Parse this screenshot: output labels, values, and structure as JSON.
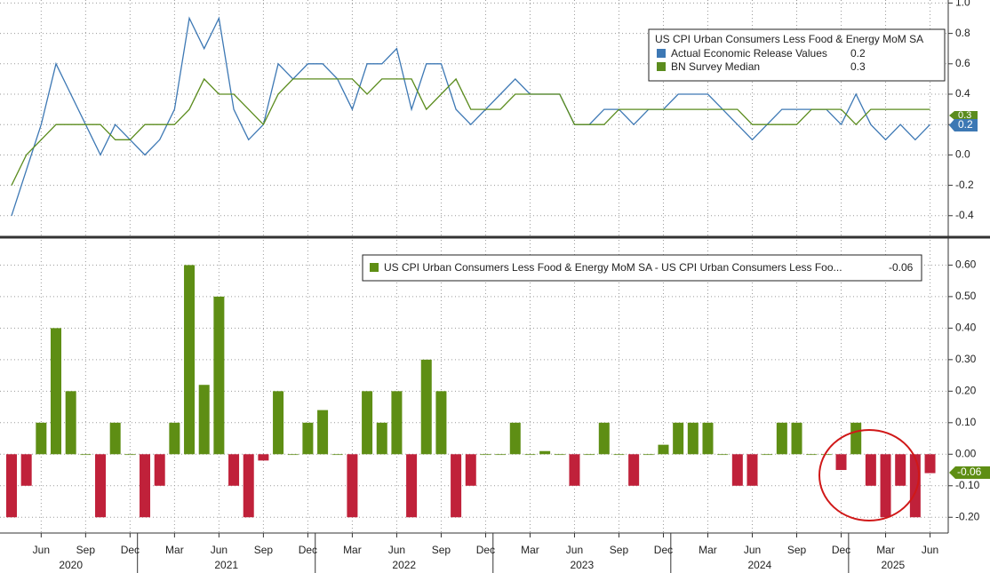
{
  "chart_data": [
    {
      "type": "line",
      "legend_title": "US CPI Urban Consumers Less Food & Energy MoM SA",
      "series": [
        {
          "name": "Actual Economic Release Values",
          "color": "#3d78b4",
          "values": [
            -0.4,
            -0.1,
            0.2,
            0.6,
            0.4,
            0.2,
            0.0,
            0.2,
            0.1,
            0.0,
            0.1,
            0.3,
            0.9,
            0.7,
            0.9,
            0.3,
            0.1,
            0.2,
            0.6,
            0.5,
            0.6,
            0.6,
            0.5,
            0.3,
            0.6,
            0.6,
            0.7,
            0.3,
            0.6,
            0.6,
            0.3,
            0.2,
            0.3,
            0.4,
            0.5,
            0.4,
            0.4,
            0.4,
            0.2,
            0.2,
            0.3,
            0.3,
            0.2,
            0.3,
            0.3,
            0.4,
            0.4,
            0.4,
            0.3,
            0.2,
            0.1,
            0.2,
            0.3,
            0.3,
            0.3,
            0.3,
            0.2,
            0.4,
            0.2,
            0.1,
            0.2,
            0.1,
            0.2
          ]
        },
        {
          "name": "BN Survey Median",
          "color": "#5b8c1e",
          "values": [
            -0.2,
            0.0,
            0.1,
            0.2,
            0.2,
            0.2,
            0.2,
            0.1,
            0.1,
            0.2,
            0.2,
            0.2,
            0.3,
            0.5,
            0.4,
            0.4,
            0.3,
            0.2,
            0.4,
            0.5,
            0.5,
            0.5,
            0.5,
            0.5,
            0.4,
            0.5,
            0.5,
            0.5,
            0.3,
            0.4,
            0.5,
            0.3,
            0.3,
            0.3,
            0.4,
            0.4,
            0.4,
            0.4,
            0.2,
            0.2,
            0.2,
            0.3,
            0.3,
            0.3,
            0.3,
            0.3,
            0.3,
            0.3,
            0.3,
            0.3,
            0.2,
            0.2,
            0.2,
            0.2,
            0.3,
            0.3,
            0.3,
            0.2,
            0.3,
            0.3,
            0.3,
            0.3,
            0.3
          ]
        }
      ],
      "ylim": [
        -0.53,
        1.02
      ],
      "yticks": [
        -0.4,
        -0.2,
        {
          "value": 0,
          "label": "0.0"
        },
        0.2,
        0.4,
        0.6,
        0.8,
        {
          "value": 1,
          "label": "1.0"
        }
      ],
      "grid": true
    },
    {
      "type": "bar",
      "categories": [
        null,
        null,
        "Jun",
        null,
        null,
        "Sep",
        null,
        null,
        "Dec",
        null,
        null,
        "Mar",
        null,
        null,
        "Jun",
        null,
        null,
        "Sep",
        null,
        null,
        "Dec",
        null,
        null,
        "Mar",
        null,
        null,
        "Jun",
        null,
        null,
        "Sep",
        null,
        null,
        "Dec",
        null,
        null,
        "Mar",
        null,
        null,
        "Jun",
        null,
        null,
        "Sep",
        null,
        null,
        "Dec",
        null,
        null,
        "Mar",
        null,
        null,
        "Jun",
        null,
        null,
        "Sep",
        null,
        null,
        "Dec",
        null,
        null,
        "Mar",
        null,
        null,
        "Jun"
      ],
      "years": [
        "2020",
        "2021",
        "2022",
        "2023",
        "2024",
        "2025"
      ],
      "series": [
        {
          "name": "US CPI Urban Consumers Less Food & Energy MoM SA - US CPI Urban Consumers Less Foo...",
          "color": "#5e8e14",
          "negative_color": "#c0213a",
          "values": [
            -0.2,
            -0.1,
            0.1,
            0.4,
            0.2,
            0,
            -0.2,
            0.1,
            0,
            -0.2,
            -0.1,
            0.1,
            0.6,
            0.22,
            0.5,
            -0.1,
            -0.2,
            -0.02,
            0.2,
            0,
            0.1,
            0.14,
            0,
            -0.2,
            0.2,
            0.1,
            0.2,
            -0.2,
            0.3,
            0.2,
            -0.2,
            -0.1,
            0,
            0,
            0.1,
            0,
            0.01,
            0,
            -0.1,
            0,
            0.1,
            0,
            -0.1,
            0,
            0.03,
            0.1,
            0.1,
            0.1,
            0,
            -0.1,
            -0.1,
            0,
            0.1,
            0.1,
            0,
            0,
            -0.05,
            0.1,
            -0.1,
            -0.2,
            -0.1,
            -0.2,
            -0.06
          ]
        }
      ],
      "ylim": [
        -0.25,
        0.68
      ],
      "yticks": [
        {
          "value": -0.2,
          "label": "-0.20"
        },
        {
          "value": -0.1,
          "label": "-0.10"
        },
        {
          "value": 0,
          "label": "0.00"
        },
        {
          "value": 0.1,
          "label": "0.10"
        },
        {
          "value": 0.2,
          "label": "0.20"
        },
        {
          "value": 0.3,
          "label": "0.30"
        },
        {
          "value": 0.4,
          "label": "0.40"
        },
        {
          "value": 0.5,
          "label": "0.50"
        },
        {
          "value": 0.6,
          "label": "0.60"
        }
      ],
      "grid": true
    }
  ]
}
